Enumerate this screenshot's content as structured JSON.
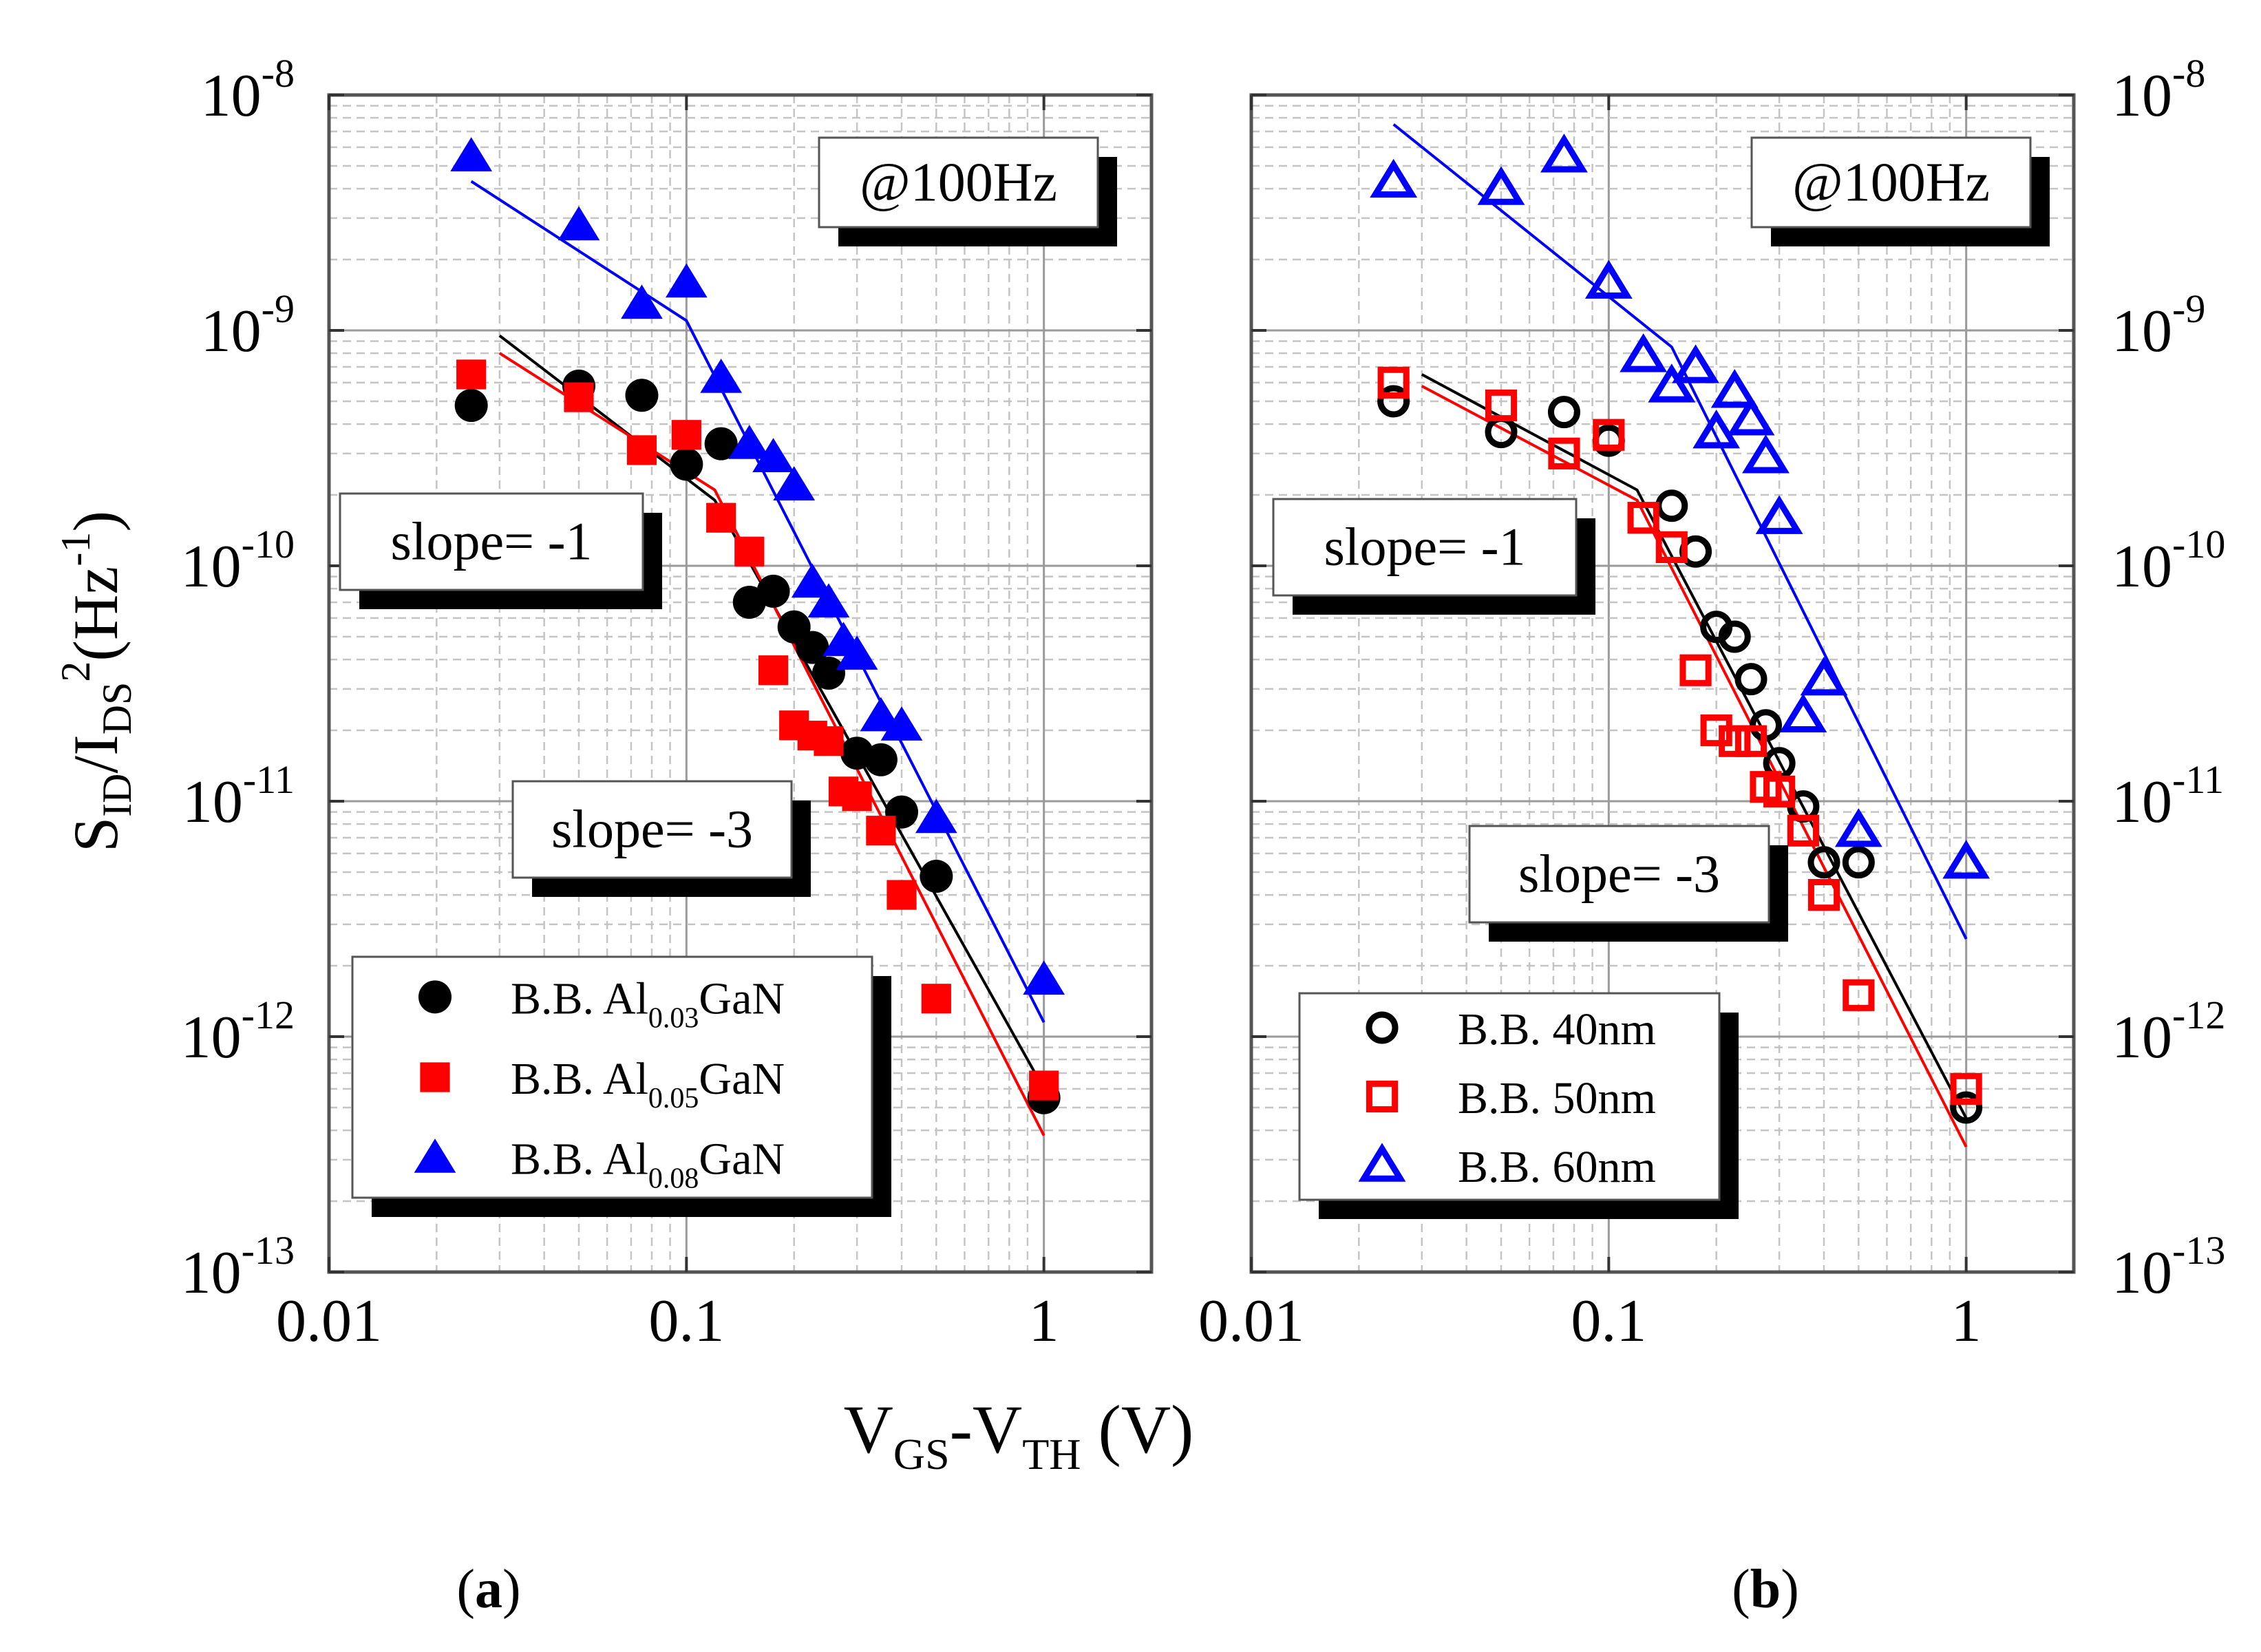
{
  "figure": {
    "y_axis_label": "S_ID/I_DS^2(Hz^-1)",
    "y_axis_label_parts": {
      "s": "S",
      "s_sub": "ID",
      "slash": "/I",
      "i_sub": "DS",
      "sup2": "2",
      "open": "(Hz",
      "unit_sup": "-1",
      "close": ")"
    },
    "x_axis_label": "V_GS-V_TH (V)",
    "x_axis_label_parts": {
      "v1": "V",
      "gs": "GS",
      "dash": "-V",
      "th": "TH",
      "unit": " (V)"
    }
  },
  "chart_data": [
    {
      "type": "scatter",
      "panel_label": "(a)",
      "panel_letter": "a",
      "frequency_note": "@100Hz",
      "slope_labels": [
        "slope= -1",
        "slope= -3"
      ],
      "x_scale": "log",
      "y_scale": "log",
      "xlim": [
        0.01,
        2
      ],
      "ylim": [
        1e-13,
        1e-08
      ],
      "x_ticks": [
        "0.01",
        "0.1",
        "1"
      ],
      "y_ticks": [
        {
          "base": "10",
          "exp": "-13"
        },
        {
          "base": "10",
          "exp": "-12"
        },
        {
          "base": "10",
          "exp": "-11"
        },
        {
          "base": "10",
          "exp": "-10"
        },
        {
          "base": "10",
          "exp": "-9"
        },
        {
          "base": "10",
          "exp": "-8"
        }
      ],
      "grid": true,
      "legend_position": "bottom-left",
      "series": [
        {
          "name": "B.B. Al0.03GaN",
          "legend": {
            "pre": "B.B. Al",
            "sub": "0.03",
            "post": "GaN"
          },
          "marker": "circle",
          "filled": true,
          "color": "#000000",
          "x": [
            0.025,
            0.05,
            0.075,
            0.1,
            0.125,
            0.15,
            0.175,
            0.2,
            0.225,
            0.25,
            0.3,
            0.35,
            0.4,
            0.5,
            1.0
          ],
          "y": [
            4.8e-10,
            5.8e-10,
            5.3e-10,
            2.7e-10,
            3.3e-10,
            7e-11,
            7.8e-11,
            5.5e-11,
            4.5e-11,
            3.5e-11,
            1.6e-11,
            1.5e-11,
            9e-12,
            4.8e-12,
            5.5e-13
          ]
        },
        {
          "name": "B.B. Al0.05GaN",
          "legend": {
            "pre": "B.B. Al",
            "sub": "0.05",
            "post": "GaN"
          },
          "marker": "square",
          "filled": true,
          "color": "#ff0000",
          "x": [
            0.025,
            0.05,
            0.075,
            0.1,
            0.125,
            0.15,
            0.175,
            0.2,
            0.225,
            0.25,
            0.275,
            0.3,
            0.35,
            0.4,
            0.5,
            1.0
          ],
          "y": [
            6.5e-10,
            5.2e-10,
            3.1e-10,
            3.6e-10,
            1.6e-10,
            1.15e-10,
            3.6e-11,
            2.1e-11,
            1.9e-11,
            1.8e-11,
            1.1e-11,
            1.05e-11,
            7.5e-12,
            4e-12,
            1.45e-12,
            6.2e-13
          ]
        },
        {
          "name": "B.B. Al0.08GaN",
          "legend": {
            "pre": "B.B. Al",
            "sub": "0.08",
            "post": "GaN"
          },
          "marker": "triangle",
          "filled": true,
          "color": "#0000ff",
          "x": [
            0.025,
            0.05,
            0.075,
            0.1,
            0.125,
            0.15,
            0.175,
            0.2,
            0.225,
            0.25,
            0.275,
            0.3,
            0.35,
            0.4,
            0.5,
            1.0
          ],
          "y": [
            5.5e-09,
            2.8e-09,
            1.3e-09,
            1.6e-09,
            6.3e-10,
            3.3e-10,
            2.9e-10,
            2.2e-10,
            8.5e-11,
            7e-11,
            4.8e-11,
            4.2e-11,
            2.3e-11,
            2.1e-11,
            8.5e-12,
            1.75e-12
          ]
        }
      ],
      "fit_lines": [
        {
          "label": "black fit",
          "color": "#000000",
          "points": [
            [
              0.03,
              9.5e-10
            ],
            [
              0.12,
              1.9e-10
            ],
            [
              1.0,
              6e-13
            ]
          ]
        },
        {
          "label": "red fit",
          "color": "#ff0000",
          "points": [
            [
              0.03,
              8e-10
            ],
            [
              0.12,
              2.1e-10
            ],
            [
              1.0,
              3.8e-13
            ]
          ]
        },
        {
          "label": "blue fit",
          "color": "#0000ff",
          "points": [
            [
              0.025,
              4.3e-09
            ],
            [
              0.1,
              1.1e-09
            ],
            [
              1.0,
              1.15e-12
            ]
          ]
        }
      ]
    },
    {
      "type": "scatter",
      "panel_label": "(b)",
      "panel_letter": "b",
      "frequency_note": "@100Hz",
      "slope_labels": [
        "slope= -1",
        "slope= -3"
      ],
      "x_scale": "log",
      "y_scale": "log",
      "xlim": [
        0.01,
        2
      ],
      "ylim": [
        1e-13,
        1e-08
      ],
      "x_ticks": [
        "0.01",
        "0.1",
        "1"
      ],
      "y_ticks": [
        {
          "base": "10",
          "exp": "-13"
        },
        {
          "base": "10",
          "exp": "-12"
        },
        {
          "base": "10",
          "exp": "-11"
        },
        {
          "base": "10",
          "exp": "-10"
        },
        {
          "base": "10",
          "exp": "-9"
        },
        {
          "base": "10",
          "exp": "-8"
        }
      ],
      "grid": true,
      "legend_position": "bottom-left",
      "series": [
        {
          "name": "B.B. 40nm",
          "legend": {
            "pre": "B.B. 40nm",
            "sub": "",
            "post": ""
          },
          "marker": "circle",
          "filled": false,
          "color": "#000000",
          "x": [
            0.025,
            0.05,
            0.075,
            0.1,
            0.15,
            0.175,
            0.2,
            0.225,
            0.25,
            0.275,
            0.3,
            0.35,
            0.4,
            0.5,
            1.0
          ],
          "y": [
            5e-10,
            3.7e-10,
            4.5e-10,
            3.4e-10,
            1.8e-10,
            1.15e-10,
            5.5e-11,
            5e-11,
            3.3e-11,
            2.1e-11,
            1.45e-11,
            9.5e-12,
            5.5e-12,
            5.5e-12,
            5e-13
          ]
        },
        {
          "name": "B.B. 50nm",
          "legend": {
            "pre": "B.B. 50nm",
            "sub": "",
            "post": ""
          },
          "marker": "square",
          "filled": false,
          "color": "#ff0000",
          "x": [
            0.025,
            0.05,
            0.075,
            0.1,
            0.125,
            0.15,
            0.175,
            0.2,
            0.225,
            0.25,
            0.275,
            0.3,
            0.35,
            0.4,
            0.5,
            1.0
          ],
          "y": [
            6e-10,
            4.8e-10,
            3e-10,
            3.6e-10,
            1.6e-10,
            1.2e-10,
            3.6e-11,
            2e-11,
            1.8e-11,
            1.8e-11,
            1.15e-11,
            1.1e-11,
            7.5e-12,
            4e-12,
            1.5e-12,
            6e-13
          ]
        },
        {
          "name": "B.B. 60nm",
          "legend": {
            "pre": "B.B. 60nm",
            "sub": "",
            "post": ""
          },
          "marker": "triangle",
          "filled": false,
          "color": "#0000ff",
          "x": [
            0.025,
            0.05,
            0.075,
            0.1,
            0.125,
            0.15,
            0.175,
            0.2,
            0.225,
            0.25,
            0.275,
            0.3,
            0.35,
            0.4,
            0.5,
            1.0
          ],
          "y": [
            4.3e-09,
            4e-09,
            5.5e-09,
            1.6e-09,
            7.8e-10,
            5.8e-10,
            7e-10,
            3.7e-10,
            5.5e-10,
            4.2e-10,
            2.9e-10,
            1.6e-10,
            2.3e-11,
            3.3e-11,
            7.5e-12,
            5.5e-12
          ]
        }
      ],
      "fit_lines": [
        {
          "label": "black fit",
          "color": "#000000",
          "points": [
            [
              0.03,
              6.5e-10
            ],
            [
              0.12,
              2.1e-10
            ],
            [
              1.0,
              4.5e-13
            ]
          ]
        },
        {
          "label": "red fit",
          "color": "#ff0000",
          "points": [
            [
              0.03,
              5.8e-10
            ],
            [
              0.12,
              1.9e-10
            ],
            [
              1.0,
              3.4e-13
            ]
          ]
        },
        {
          "label": "blue fit",
          "color": "#0000ff",
          "points": [
            [
              0.025,
              7.5e-09
            ],
            [
              0.15,
              8.5e-10
            ],
            [
              1.0,
              2.6e-12
            ]
          ]
        }
      ]
    }
  ]
}
